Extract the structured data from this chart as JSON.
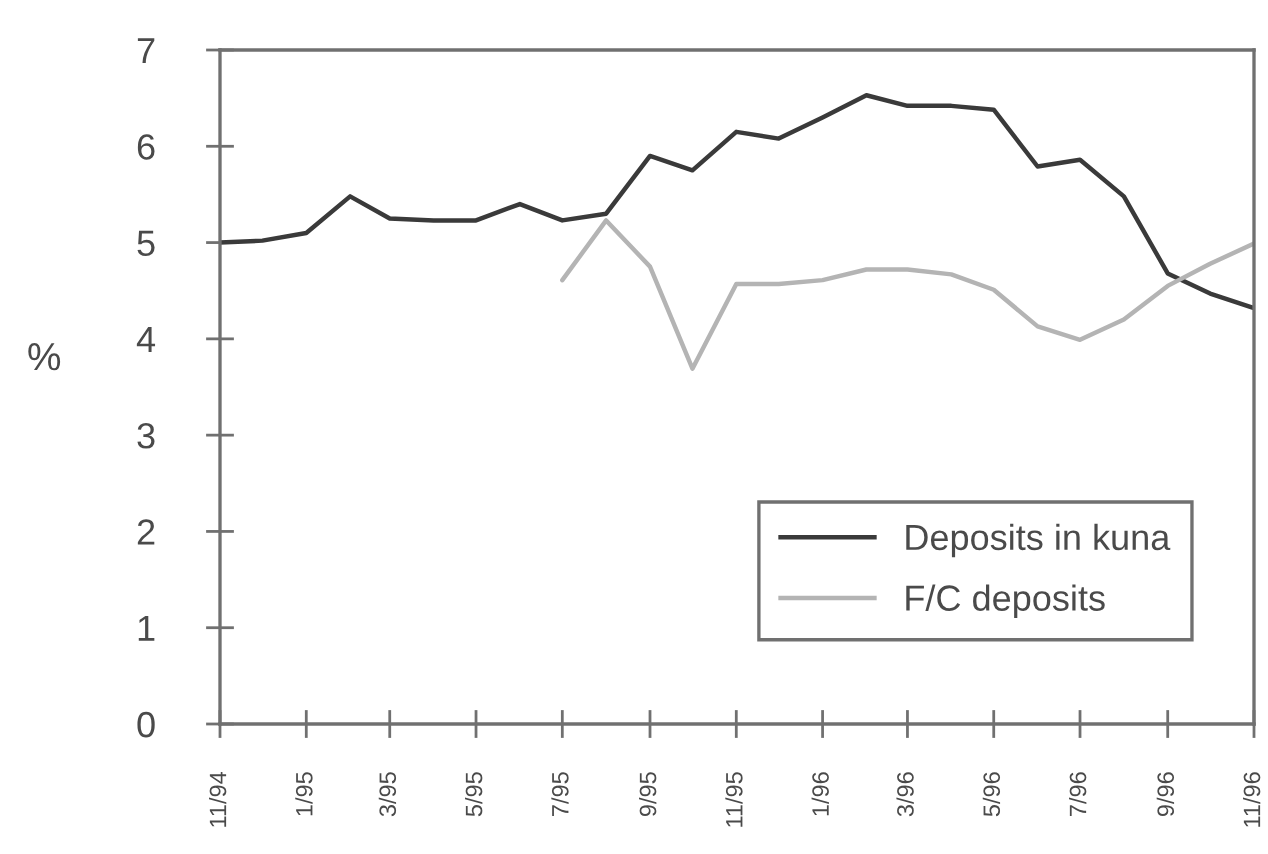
{
  "chart_data": {
    "type": "line",
    "ylabel": "%",
    "x": [
      "1994-11",
      "1994-12",
      "1995-01",
      "1995-02",
      "1995-03",
      "1995-04",
      "1995-05",
      "1995-06",
      "1995-07",
      "1995-08",
      "1995-09",
      "1995-10",
      "1995-11",
      "1995-12",
      "1996-01",
      "1996-02",
      "1996-03",
      "1996-04",
      "1996-05",
      "1996-06",
      "1996-07",
      "1996-08",
      "1996-09",
      "1996-10",
      "1996-11"
    ],
    "series": [
      {
        "name": "Deposits in kuna",
        "color": "#3a3a3a",
        "values": [
          5.0,
          5.02,
          5.1,
          5.48,
          5.25,
          5.23,
          5.23,
          5.4,
          5.23,
          5.3,
          5.9,
          5.75,
          6.15,
          6.08,
          6.3,
          6.53,
          6.42,
          6.42,
          6.38,
          5.79,
          5.86,
          5.48,
          4.68,
          4.47,
          4.32
        ]
      },
      {
        "name": "F/C deposits",
        "color": "#b4b4b4",
        "values": [
          null,
          null,
          null,
          null,
          null,
          null,
          null,
          null,
          4.61,
          5.23,
          4.75,
          3.69,
          4.57,
          4.57,
          4.61,
          4.72,
          4.72,
          4.67,
          4.51,
          4.13,
          3.99,
          4.2,
          4.55,
          4.78,
          4.99
        ]
      }
    ],
    "xlim": [
      "1994-11",
      "1996-11"
    ],
    "xticks": [
      {
        "value": "1994-11",
        "label": "11/94"
      },
      {
        "value": "1995-01",
        "label": "1/95"
      },
      {
        "value": "1995-03",
        "label": "3/95"
      },
      {
        "value": "1995-05",
        "label": "5/95"
      },
      {
        "value": "1995-07",
        "label": "7/95"
      },
      {
        "value": "1995-09",
        "label": "9/95"
      },
      {
        "value": "1995-11",
        "label": "11/95"
      },
      {
        "value": "1996-01",
        "label": "1/96"
      },
      {
        "value": "1996-03",
        "label": "3/96"
      },
      {
        "value": "1996-05",
        "label": "5/96"
      },
      {
        "value": "1996-07",
        "label": "7/96"
      },
      {
        "value": "1996-09",
        "label": "9/96"
      },
      {
        "value": "1996-11",
        "label": "11/96"
      }
    ],
    "ylim": [
      0,
      7
    ],
    "yticks": [
      0,
      1,
      2,
      3,
      4,
      5,
      6,
      7
    ],
    "legend": "bottom right"
  }
}
